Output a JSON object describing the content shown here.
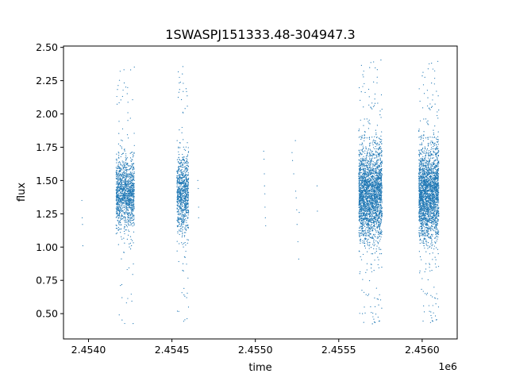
{
  "chart_data": {
    "type": "scatter",
    "title": "1SWASPJ151333.48-304947.3",
    "xlabel": "time",
    "ylabel": "flux",
    "x_offset_label": "1e6",
    "xlim": [
      2453850,
      2456210
    ],
    "ylim": [
      0.31,
      2.51
    ],
    "xticks": [
      2454000,
      2454500,
      2455000,
      2455500,
      2456000
    ],
    "xtick_labels": [
      "2.4540",
      "2.4545",
      "2.4550",
      "2.4555",
      "2.4560"
    ],
    "yticks": [
      0.5,
      0.75,
      1.0,
      1.25,
      1.5,
      1.75,
      2.0,
      2.25,
      2.5
    ],
    "ytick_labels": [
      "0.50",
      "0.75",
      "1.00",
      "1.25",
      "1.50",
      "1.75",
      "2.00",
      "2.25",
      "2.50"
    ],
    "marker_color": "#1f77b4",
    "grid": false,
    "series": [
      {
        "clusters": [
          {
            "t_range": [
              2454165,
              2454275
            ],
            "flux_center": 1.4,
            "flux_spread": 0.13,
            "flux_min": 0.42,
            "flux_max": 2.38,
            "n": 1300
          },
          {
            "t_range": [
              2454530,
              2454600
            ],
            "flux_center": 1.4,
            "flux_spread": 0.14,
            "flux_min": 0.42,
            "flux_max": 2.36,
            "n": 900
          },
          {
            "t_range": [
              2455620,
              2455760
            ],
            "flux_center": 1.4,
            "flux_spread": 0.17,
            "flux_min": 0.4,
            "flux_max": 2.41,
            "n": 2600
          },
          {
            "t_range": [
              2455980,
              2456100
            ],
            "flux_center": 1.4,
            "flux_spread": 0.17,
            "flux_min": 0.41,
            "flux_max": 2.4,
            "n": 2400
          }
        ],
        "points": [
          {
            "x": 2453960,
            "y": 1.35
          },
          {
            "x": 2453962,
            "y": 1.22
          },
          {
            "x": 2453964,
            "y": 1.17
          },
          {
            "x": 2453966,
            "y": 1.01
          },
          {
            "x": 2454655,
            "y": 1.5
          },
          {
            "x": 2454658,
            "y": 1.44
          },
          {
            "x": 2454660,
            "y": 1.22
          },
          {
            "x": 2454660,
            "y": 1.3
          },
          {
            "x": 2455050,
            "y": 1.72
          },
          {
            "x": 2455052,
            "y": 1.66
          },
          {
            "x": 2455054,
            "y": 1.55
          },
          {
            "x": 2455055,
            "y": 1.46
          },
          {
            "x": 2455057,
            "y": 1.4
          },
          {
            "x": 2455058,
            "y": 1.3
          },
          {
            "x": 2455060,
            "y": 1.22
          },
          {
            "x": 2455062,
            "y": 1.16
          },
          {
            "x": 2455220,
            "y": 1.71
          },
          {
            "x": 2455223,
            "y": 1.65
          },
          {
            "x": 2455230,
            "y": 1.55
          },
          {
            "x": 2455240,
            "y": 1.8
          },
          {
            "x": 2455242,
            "y": 1.42
          },
          {
            "x": 2455245,
            "y": 1.37
          },
          {
            "x": 2455248,
            "y": 1.28
          },
          {
            "x": 2455250,
            "y": 1.17
          },
          {
            "x": 2455255,
            "y": 1.04
          },
          {
            "x": 2455260,
            "y": 0.91
          },
          {
            "x": 2455263,
            "y": 1.26
          },
          {
            "x": 2455370,
            "y": 1.46
          },
          {
            "x": 2455372,
            "y": 1.27
          }
        ]
      }
    ]
  }
}
